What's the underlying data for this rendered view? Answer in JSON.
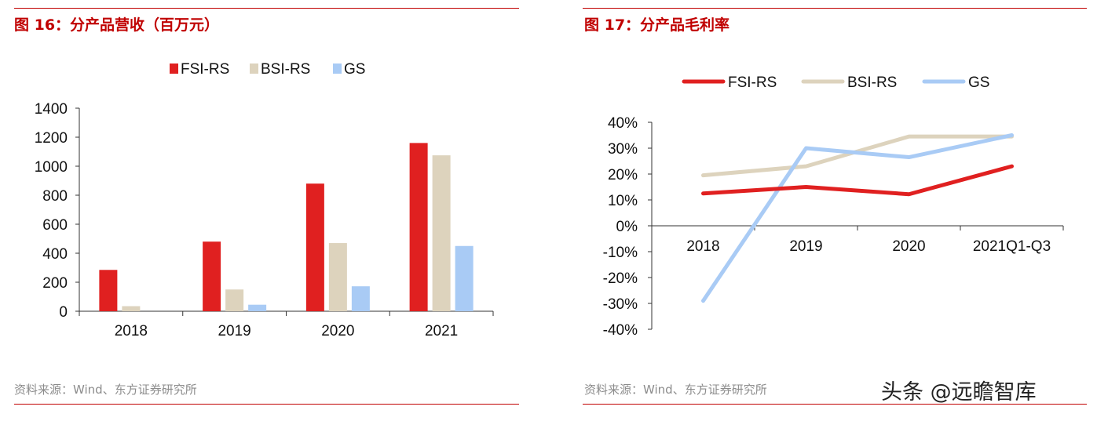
{
  "left_panel": {
    "title": "图 16：分产品营收（百万元）",
    "source": "资料来源：Wind、东方证券研究所"
  },
  "right_panel": {
    "title": "图 17：分产品毛利率",
    "source": "资料来源：Wind、东方证券研究所"
  },
  "watermark": "头条 @远瞻智库",
  "chart_data": [
    {
      "type": "bar",
      "title": "",
      "categories": [
        "2018",
        "2019",
        "2020",
        "2021"
      ],
      "series": [
        {
          "name": "FSI-RS",
          "values": [
            285,
            480,
            880,
            1160
          ],
          "color": "#e02020"
        },
        {
          "name": "BSI-RS",
          "values": [
            35,
            150,
            470,
            1075
          ],
          "color": "#ddd3bd"
        },
        {
          "name": "GS",
          "values": [
            0,
            45,
            172,
            450
          ],
          "color": "#a9cbf5"
        }
      ],
      "ylim": [
        0,
        1400
      ],
      "yticks": [
        "0",
        "200",
        "400",
        "600",
        "800",
        "1000",
        "1200",
        "1400"
      ],
      "legend": "top",
      "grid": false
    },
    {
      "type": "line",
      "title": "",
      "categories": [
        "2018",
        "2019",
        "2020",
        "2021Q1-Q3"
      ],
      "series": [
        {
          "name": "FSI-RS",
          "values": [
            12.5,
            15.0,
            12.2,
            23.0
          ],
          "color": "#e02020"
        },
        {
          "name": "BSI-RS",
          "values": [
            19.5,
            23.0,
            34.5,
            34.5
          ],
          "color": "#ddd3bd"
        },
        {
          "name": "GS",
          "values": [
            -29.0,
            30.0,
            26.5,
            35.0
          ],
          "color": "#a9cbf5"
        }
      ],
      "ylim": [
        -40,
        40
      ],
      "yticks": [
        "40%",
        "30%",
        "20%",
        "10%",
        "0%",
        "-10%",
        "-20%",
        "-30%",
        "-40%"
      ],
      "legend": "top",
      "grid": false
    }
  ]
}
